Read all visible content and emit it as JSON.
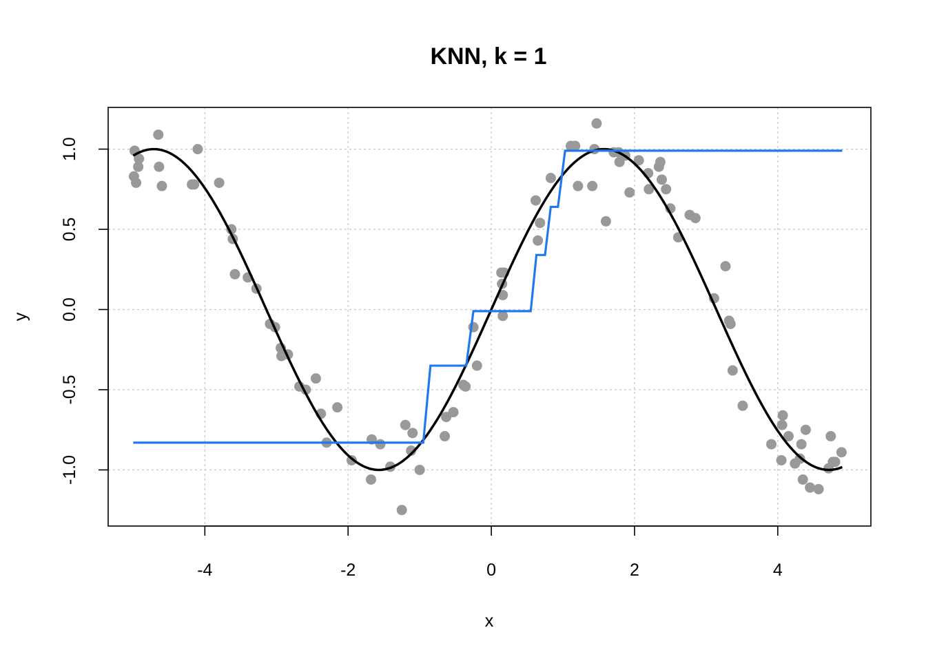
{
  "chart_data": {
    "type": "scatter",
    "title": "KNN, k = 1",
    "xlabel": "x",
    "ylabel": "y",
    "xlim": [
      -5.35,
      5.3
    ],
    "ylim": [
      -1.35,
      1.26
    ],
    "grid": true,
    "x_ticks": [
      -4,
      -2,
      0,
      2,
      4
    ],
    "x_tick_labels": [
      "-4",
      "-2",
      "0",
      "2",
      "4"
    ],
    "y_ticks": [
      -1.0,
      -0.5,
      0.0,
      0.5,
      1.0
    ],
    "y_tick_labels": [
      "-1.0",
      "-0.5",
      "0.0",
      "0.5",
      "1.0"
    ],
    "colors": {
      "points": "#999999",
      "true_curve": "#000000",
      "knn_fit": "#1f78f0",
      "grid": "#c8c8c8"
    },
    "series": [
      {
        "kind": "points",
        "points": [
          [
            -4.98,
            0.99
          ],
          [
            -4.99,
            0.83
          ],
          [
            -4.96,
            0.79
          ],
          [
            -4.92,
            0.94
          ],
          [
            -4.93,
            0.89
          ],
          [
            -4.65,
            1.09
          ],
          [
            -4.64,
            0.89
          ],
          [
            -4.6,
            0.77
          ],
          [
            -4.18,
            0.78
          ],
          [
            -4.15,
            0.78
          ],
          [
            -4.1,
            1.0
          ],
          [
            -3.8,
            0.79
          ],
          [
            -3.63,
            0.5
          ],
          [
            -3.61,
            0.44
          ],
          [
            -3.58,
            0.22
          ],
          [
            -3.4,
            0.2
          ],
          [
            -3.28,
            0.13
          ],
          [
            -3.09,
            -0.09
          ],
          [
            -3.02,
            -0.11
          ],
          [
            -2.94,
            -0.24
          ],
          [
            -2.93,
            -0.29
          ],
          [
            -2.84,
            -0.28
          ],
          [
            -2.68,
            -0.48
          ],
          [
            -2.59,
            -0.5
          ],
          [
            -2.45,
            -0.43
          ],
          [
            -2.38,
            -0.65
          ],
          [
            -2.3,
            -0.83
          ],
          [
            -2.15,
            -0.61
          ],
          [
            -1.95,
            -0.94
          ],
          [
            -1.67,
            -0.81
          ],
          [
            -1.68,
            -1.06
          ],
          [
            -1.55,
            -0.84
          ],
          [
            -1.41,
            -0.98
          ],
          [
            -1.25,
            -1.25
          ],
          [
            -1.2,
            -0.72
          ],
          [
            -1.12,
            -0.88
          ],
          [
            -1.1,
            -0.77
          ],
          [
            -1.0,
            -1.0
          ],
          [
            -0.65,
            -0.79
          ],
          [
            -0.63,
            -0.67
          ],
          [
            -0.53,
            -0.64
          ],
          [
            -0.39,
            -0.47
          ],
          [
            -0.36,
            -0.48
          ],
          [
            -0.25,
            -0.11
          ],
          [
            -0.2,
            -0.35
          ],
          [
            0.14,
            0.23
          ],
          [
            0.18,
            0.23
          ],
          [
            0.15,
            0.16
          ],
          [
            0.16,
            0.09
          ],
          [
            0.16,
            -0.04
          ],
          [
            0.62,
            0.68
          ],
          [
            0.65,
            0.43
          ],
          [
            0.68,
            0.54
          ],
          [
            0.83,
            0.82
          ],
          [
            1.11,
            1.02
          ],
          [
            1.17,
            1.02
          ],
          [
            1.21,
            0.77
          ],
          [
            1.41,
            0.77
          ],
          [
            1.44,
            1.0
          ],
          [
            1.47,
            1.16
          ],
          [
            1.6,
            0.55
          ],
          [
            1.71,
            0.98
          ],
          [
            1.78,
            0.98
          ],
          [
            1.79,
            0.92
          ],
          [
            1.87,
            0.96
          ],
          [
            1.93,
            0.73
          ],
          [
            2.06,
            0.93
          ],
          [
            2.19,
            0.85
          ],
          [
            2.2,
            0.75
          ],
          [
            2.34,
            0.89
          ],
          [
            2.36,
            0.92
          ],
          [
            2.38,
            0.81
          ],
          [
            2.44,
            0.75
          ],
          [
            2.5,
            0.63
          ],
          [
            2.61,
            0.45
          ],
          [
            2.77,
            0.59
          ],
          [
            2.85,
            0.57
          ],
          [
            3.11,
            0.07
          ],
          [
            3.27,
            0.27
          ],
          [
            3.32,
            -0.07
          ],
          [
            3.34,
            -0.09
          ],
          [
            3.37,
            -0.38
          ],
          [
            3.51,
            -0.6
          ],
          [
            3.91,
            -0.84
          ],
          [
            4.05,
            -0.94
          ],
          [
            4.06,
            -0.72
          ],
          [
            4.07,
            -0.66
          ],
          [
            4.15,
            -0.79
          ],
          [
            4.24,
            -0.96
          ],
          [
            4.31,
            -0.93
          ],
          [
            4.33,
            -0.84
          ],
          [
            4.35,
            -1.06
          ],
          [
            4.39,
            -0.75
          ],
          [
            4.45,
            -1.11
          ],
          [
            4.57,
            -1.12
          ],
          [
            4.71,
            -0.99
          ],
          [
            4.74,
            -0.79
          ],
          [
            4.77,
            -0.95
          ],
          [
            4.8,
            -0.95
          ],
          [
            4.89,
            -0.89
          ]
        ]
      },
      {
        "kind": "true-curve",
        "function": "sin(x)",
        "x_range": [
          -5.0,
          4.9
        ]
      },
      {
        "kind": "knn-step-fit",
        "points": [
          [
            -5.0,
            -0.83
          ],
          [
            -0.95,
            -0.83
          ],
          [
            -0.85,
            -0.35
          ],
          [
            -0.35,
            -0.35
          ],
          [
            -0.25,
            -0.01
          ],
          [
            0.55,
            -0.01
          ],
          [
            0.63,
            0.34
          ],
          [
            0.75,
            0.34
          ],
          [
            0.83,
            0.64
          ],
          [
            0.93,
            0.64
          ],
          [
            1.03,
            0.99
          ],
          [
            4.9,
            0.99
          ]
        ]
      }
    ]
  }
}
